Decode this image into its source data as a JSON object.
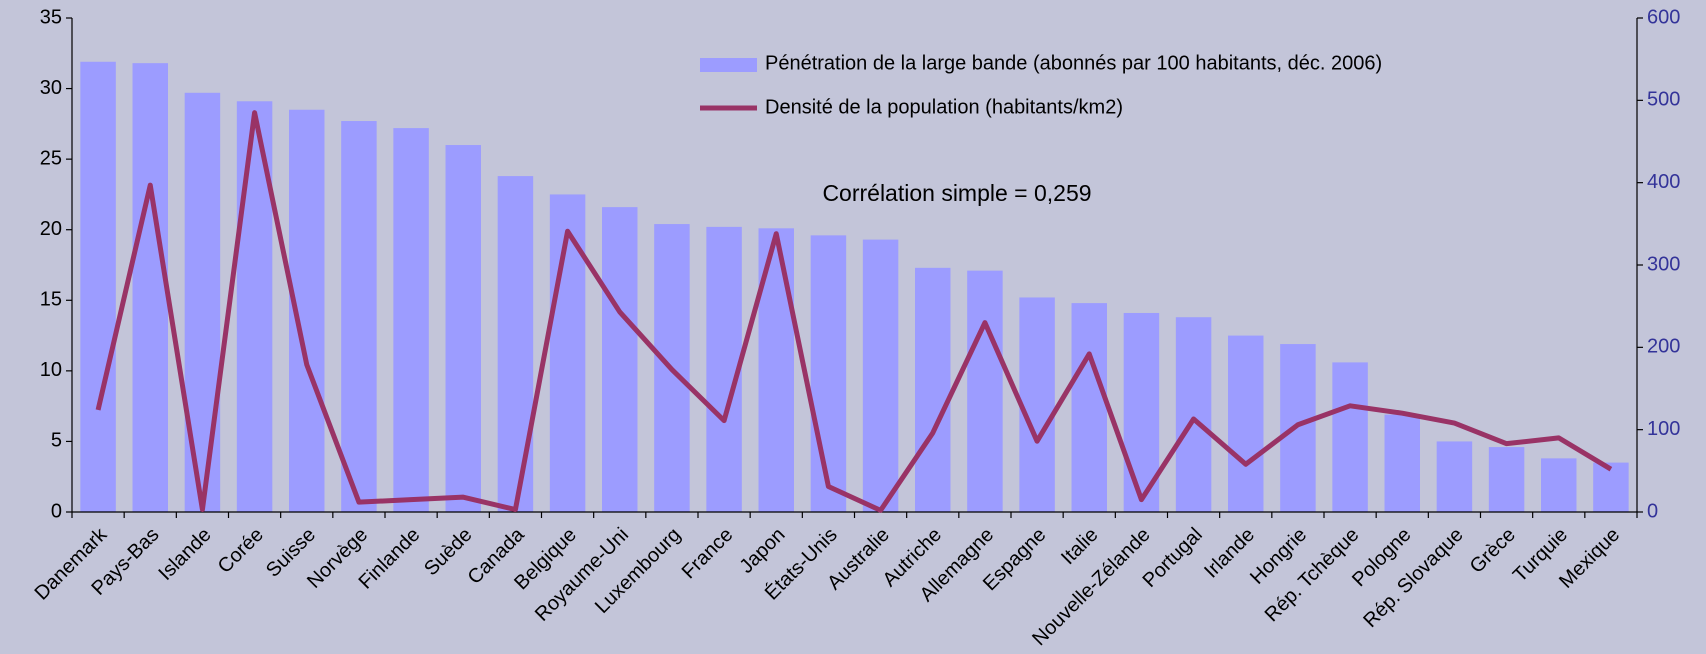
{
  "chart_data": {
    "type": "bar_line",
    "annotation": "Corrélation simple = 0,259",
    "categories": [
      "Danemark",
      "Pays-Bas",
      "Islande",
      "Corée",
      "Suisse",
      "Norvège",
      "Finlande",
      "Suède",
      "Canada",
      "Belgique",
      "Royaume-Uni",
      "Luxembourg",
      "France",
      "Japon",
      "États-Unis",
      "Australie",
      "Autriche",
      "Allemagne",
      "Espagne",
      "Italie",
      "Nouvelle-Zélande",
      "Portugal",
      "Irlande",
      "Hongrie",
      "Rép. Tchèque",
      "Pologne",
      "Rép. Slovaque",
      "Grèce",
      "Turquie",
      "Mexique"
    ],
    "series": [
      {
        "name": "Pénétration de la large bande (abonnés par 100 habitants, déc. 2006)",
        "type": "bar",
        "color": "#9c9cff",
        "values": [
          31.9,
          31.8,
          29.7,
          29.1,
          28.5,
          27.7,
          27.2,
          26.0,
          23.8,
          22.5,
          21.6,
          20.4,
          20.2,
          20.1,
          19.6,
          19.3,
          17.3,
          17.1,
          15.2,
          14.8,
          14.1,
          13.8,
          12.5,
          11.9,
          10.6,
          6.9,
          5.0,
          4.6,
          3.8,
          3.5
        ]
      },
      {
        "name": "Densité de la population (habitants/km2)",
        "type": "line",
        "axis": "y2",
        "color": "#993366",
        "values": [
          124,
          397,
          3,
          485,
          179,
          12,
          15,
          18,
          3,
          341,
          243,
          173,
          111,
          338,
          31,
          2,
          96,
          230,
          86,
          192,
          15,
          113,
          58,
          106,
          129,
          120,
          108,
          83,
          90,
          52
        ]
      }
    ],
    "ylim": [
      0,
      35
    ],
    "yticks": [
      0,
      5,
      10,
      15,
      20,
      25,
      30,
      35
    ],
    "y2lim": [
      0,
      600
    ],
    "y2ticks": [
      0,
      100,
      200,
      300,
      400,
      500,
      600
    ]
  }
}
